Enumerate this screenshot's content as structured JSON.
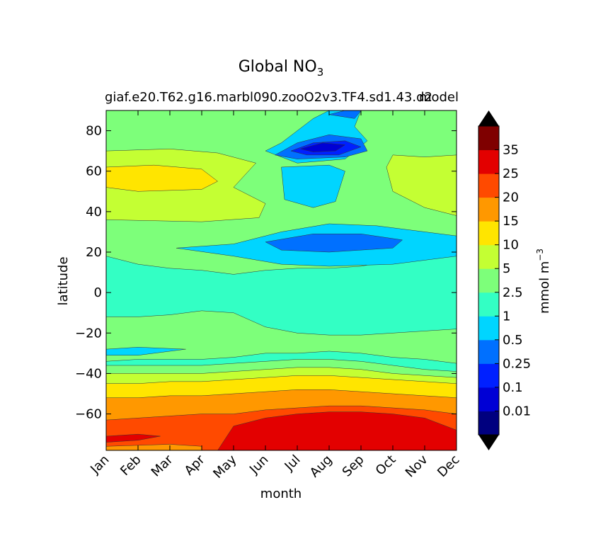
{
  "chart_data": {
    "type": "heatmap",
    "title_main": "Global NO",
    "title_subscript": "3",
    "subtitle_left": "giaf.e20.T62.g16.marbl090.zooO2v3.TF4.sd1.43.d2",
    "subtitle_right": "model",
    "xlabel": "month",
    "ylabel": "latitude",
    "x_ticks": [
      "Jan",
      "Feb",
      "Mar",
      "Apr",
      "May",
      "Jun",
      "Jul",
      "Aug",
      "Sep",
      "Oct",
      "Nov",
      "Dec"
    ],
    "y_ticks": [
      80,
      60,
      40,
      20,
      0,
      -20,
      -40,
      -60
    ],
    "y_tick_labels": [
      "80",
      "60",
      "40",
      "20",
      "0",
      "−20",
      "−40",
      "−60"
    ],
    "xlim": [
      1,
      12
    ],
    "ylim": [
      -78,
      90
    ],
    "colorbar": {
      "label": "mmol m",
      "label_superscript": "−3",
      "levels": [
        "0.01",
        "0.1",
        "0.25",
        "0.5",
        "1",
        "2.5",
        "5",
        "10",
        "15",
        "20",
        "25",
        "35"
      ],
      "colors": [
        "#00007f",
        "#0000d5",
        "#0020ff",
        "#0070ff",
        "#00d5ff",
        "#33ffc4",
        "#7dff7a",
        "#c4ff33",
        "#ffe500",
        "#ff9800",
        "#ff4a00",
        "#e30000",
        "#7f0000"
      ],
      "under_color": "#000000",
      "over_color": "#000000"
    },
    "contour_bands": [
      {
        "level": "1–2.5",
        "color": "#33ffc4",
        "boundary": [
          [
            1,
            18
          ],
          [
            2,
            14
          ],
          [
            3,
            12
          ],
          [
            4,
            11
          ],
          [
            5,
            9
          ],
          [
            6,
            11
          ],
          [
            7,
            12
          ],
          [
            8,
            12
          ],
          [
            9,
            13
          ],
          [
            10,
            16
          ],
          [
            11,
            18
          ],
          [
            12,
            22
          ]
        ]
      },
      {
        "level": "2.5–5",
        "color": "#7dff7a",
        "boundary": [
          [
            1,
            -12
          ],
          [
            2,
            -12
          ],
          [
            3,
            -11
          ],
          [
            4,
            -9
          ],
          [
            5,
            -10
          ],
          [
            6,
            -17
          ],
          [
            7,
            -20
          ],
          [
            8,
            -21
          ],
          [
            9,
            -21
          ],
          [
            10,
            -20
          ],
          [
            11,
            -19
          ],
          [
            12,
            -18
          ]
        ]
      },
      {
        "level": "1–2.5",
        "color": "#33ffc4",
        "boundary": [
          [
            1,
            -34
          ],
          [
            2,
            -33
          ],
          [
            3,
            -33
          ],
          [
            4,
            -33
          ],
          [
            5,
            -32
          ],
          [
            6,
            -30
          ],
          [
            7,
            -30
          ],
          [
            8,
            -29
          ],
          [
            9,
            -30
          ],
          [
            10,
            -32
          ],
          [
            11,
            -33
          ],
          [
            12,
            -35
          ]
        ]
      },
      {
        "level": "2.5–5",
        "color": "#7dff7a",
        "boundary": [
          [
            1,
            -36
          ],
          [
            2,
            -36
          ],
          [
            3,
            -36
          ],
          [
            4,
            -36
          ],
          [
            5,
            -35
          ],
          [
            6,
            -34
          ],
          [
            7,
            -33
          ],
          [
            8,
            -33
          ],
          [
            9,
            -34
          ],
          [
            10,
            -36
          ],
          [
            11,
            -38
          ],
          [
            12,
            -39
          ]
        ]
      },
      {
        "level": "5–10",
        "color": "#c4ff33",
        "boundary": [
          [
            1,
            -40
          ],
          [
            2,
            -40
          ],
          [
            3,
            -40
          ],
          [
            4,
            -40
          ],
          [
            5,
            -39
          ],
          [
            6,
            -38
          ],
          [
            7,
            -37
          ],
          [
            8,
            -37
          ],
          [
            9,
            -38
          ],
          [
            10,
            -40
          ],
          [
            11,
            -41
          ],
          [
            12,
            -42
          ]
        ]
      },
      {
        "level": "10–15",
        "color": "#ffe500",
        "boundary": [
          [
            1,
            -45
          ],
          [
            2,
            -45
          ],
          [
            3,
            -44
          ],
          [
            4,
            -44
          ],
          [
            5,
            -43
          ],
          [
            6,
            -42
          ],
          [
            7,
            -41
          ],
          [
            8,
            -41
          ],
          [
            9,
            -42
          ],
          [
            10,
            -43
          ],
          [
            11,
            -44
          ],
          [
            12,
            -45
          ]
        ]
      },
      {
        "level": "15–20",
        "color": "#ff9800",
        "boundary": [
          [
            1,
            -52
          ],
          [
            2,
            -52
          ],
          [
            3,
            -51
          ],
          [
            4,
            -51
          ],
          [
            5,
            -50
          ],
          [
            6,
            -49
          ],
          [
            7,
            -48
          ],
          [
            8,
            -48
          ],
          [
            9,
            -49
          ],
          [
            10,
            -50
          ],
          [
            11,
            -51
          ],
          [
            12,
            -52
          ]
        ]
      },
      {
        "level": "20–25",
        "color": "#ff4a00",
        "boundary": [
          [
            1,
            -63
          ],
          [
            2,
            -62
          ],
          [
            3,
            -61
          ],
          [
            4,
            -60
          ],
          [
            5,
            -60
          ],
          [
            6,
            -58
          ],
          [
            7,
            -57
          ],
          [
            8,
            -56
          ],
          [
            9,
            -56
          ],
          [
            10,
            -57
          ],
          [
            11,
            -58
          ],
          [
            12,
            -60
          ]
        ]
      }
    ],
    "contour_regions": [
      {
        "level": "25–35",
        "color": "#e30000",
        "shape": [
          [
            5,
            -66
          ],
          [
            6,
            -62
          ],
          [
            7,
            -60
          ],
          [
            8,
            -59
          ],
          [
            9,
            -59
          ],
          [
            10,
            -60
          ],
          [
            11,
            -62
          ],
          [
            12,
            -68
          ],
          [
            12,
            -78
          ],
          [
            4.5,
            -78
          ]
        ]
      },
      {
        "level": "25–35",
        "color": "#e30000",
        "shape": [
          [
            1,
            -71
          ],
          [
            2,
            -70
          ],
          [
            2.7,
            -71
          ],
          [
            2,
            -73
          ],
          [
            1,
            -74
          ]
        ]
      },
      {
        "level": "15–20",
        "color": "#ff9800",
        "shape": [
          [
            1,
            -76
          ],
          [
            3,
            -75
          ],
          [
            4,
            -76
          ],
          [
            4,
            -78
          ],
          [
            1,
            -78
          ]
        ]
      },
      {
        "level": "5–10",
        "color": "#c4ff33",
        "shape": [
          [
            1,
            70
          ],
          [
            3,
            71
          ],
          [
            4.5,
            69
          ],
          [
            5.7,
            64
          ],
          [
            5,
            52
          ],
          [
            6,
            44
          ],
          [
            5.8,
            37
          ],
          [
            4,
            35
          ],
          [
            1,
            36
          ]
        ]
      },
      {
        "level": "10–15",
        "color": "#ffe500",
        "shape": [
          [
            1,
            62
          ],
          [
            2.5,
            63
          ],
          [
            4,
            61
          ],
          [
            4.5,
            55
          ],
          [
            4,
            51
          ],
          [
            2,
            50
          ],
          [
            1,
            52
          ]
        ]
      },
      {
        "level": "5–10",
        "color": "#c4ff33",
        "shape": [
          [
            10,
            68
          ],
          [
            11,
            67
          ],
          [
            12,
            68
          ],
          [
            12,
            38
          ],
          [
            11,
            42
          ],
          [
            10,
            50
          ],
          [
            9.8,
            62
          ]
        ]
      },
      {
        "level": "0.5–1",
        "color": "#00d5ff",
        "shape": [
          [
            3.2,
            22
          ],
          [
            5,
            24
          ],
          [
            6.5,
            30
          ],
          [
            8,
            34
          ],
          [
            9.5,
            33
          ],
          [
            11,
            30
          ],
          [
            12,
            28
          ],
          [
            12,
            18
          ],
          [
            10,
            14
          ],
          [
            8,
            13
          ],
          [
            6.5,
            14
          ],
          [
            5,
            18
          ]
        ]
      },
      {
        "level": "0.25–0.5",
        "color": "#0070ff",
        "shape": [
          [
            6,
            25
          ],
          [
            7.5,
            29
          ],
          [
            9,
            29
          ],
          [
            10.3,
            26
          ],
          [
            10,
            22
          ],
          [
            8,
            20
          ],
          [
            6.5,
            21
          ]
        ]
      },
      {
        "level": "0.5–1",
        "color": "#00d5ff",
        "shape": [
          [
            1,
            -28
          ],
          [
            2,
            -27
          ],
          [
            3.5,
            -28
          ],
          [
            2,
            -31
          ],
          [
            1,
            -31
          ]
        ]
      },
      {
        "level": "0.5–1",
        "color": "#00d5ff",
        "shape": [
          [
            6.5,
            62
          ],
          [
            8,
            63
          ],
          [
            8.5,
            60
          ],
          [
            8.2,
            45
          ],
          [
            7.5,
            42
          ],
          [
            6.6,
            46
          ]
        ]
      },
      {
        "level": "0.5–1",
        "color": "#00d5ff",
        "shape": [
          [
            6,
            70
          ],
          [
            6.5,
            74
          ],
          [
            7,
            80
          ],
          [
            7.5,
            86
          ],
          [
            8,
            90
          ],
          [
            9,
            90
          ],
          [
            8.8,
            82
          ],
          [
            9.2,
            75
          ],
          [
            8.5,
            66
          ],
          [
            7,
            64
          ]
        ]
      },
      {
        "level": "0.25–0.5",
        "color": "#0070ff",
        "shape": [
          [
            6.3,
            68
          ],
          [
            7,
            74
          ],
          [
            8,
            78
          ],
          [
            9,
            76
          ],
          [
            9.2,
            70
          ],
          [
            8.5,
            67
          ],
          [
            7,
            66
          ]
        ]
      },
      {
        "level": "0.1–0.25",
        "color": "#0020ff",
        "shape": [
          [
            6.8,
            70
          ],
          [
            7.5,
            74
          ],
          [
            8.5,
            75
          ],
          [
            9,
            72
          ],
          [
            8.3,
            68
          ],
          [
            7.3,
            68
          ]
        ]
      },
      {
        "level": "0.01–0.1",
        "color": "#0000d5",
        "shape": [
          [
            7.1,
            71
          ],
          [
            7.8,
            74
          ],
          [
            8.5,
            73
          ],
          [
            8.2,
            70
          ],
          [
            7.5,
            69.5
          ]
        ]
      },
      {
        "level": "0.25–0.5",
        "color": "#0070ff",
        "shape": [
          [
            8,
            88
          ],
          [
            8.5,
            90
          ],
          [
            9,
            90
          ],
          [
            8.8,
            86
          ]
        ]
      }
    ]
  }
}
